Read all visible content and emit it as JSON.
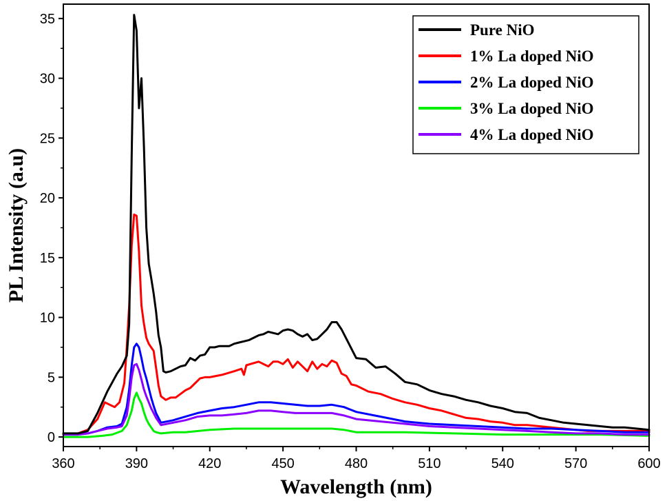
{
  "chart_data": {
    "type": "line",
    "title": "",
    "xlabel": "Wavelength (nm)",
    "ylabel": "PL Intensity (a.u)",
    "xlim": [
      360,
      600
    ],
    "ylim": [
      -0.8,
      36.2
    ],
    "xticks": [
      360,
      390,
      420,
      450,
      480,
      510,
      540,
      570,
      600
    ],
    "yticks": [
      0,
      5,
      10,
      15,
      20,
      25,
      30,
      35
    ],
    "grid": false,
    "legend_position": "top-right",
    "series": [
      {
        "name": "Pure NiO",
        "color": "#000000",
        "x": [
          360,
          366,
          370,
          374,
          378,
          382,
          384,
          386,
          387,
          388,
          389,
          390,
          391,
          392,
          393,
          394,
          395,
          396,
          397,
          398,
          399,
          400,
          401,
          402,
          404,
          406,
          408,
          410,
          412,
          414,
          416,
          418,
          420,
          422,
          424,
          426,
          428,
          430,
          432,
          434,
          436,
          438,
          440,
          442,
          444,
          446,
          448,
          450,
          452,
          454,
          456,
          458,
          460,
          462,
          464,
          466,
          468,
          470,
          472,
          474,
          476,
          478,
          480,
          484,
          488,
          492,
          496,
          500,
          505,
          510,
          515,
          520,
          525,
          530,
          535,
          540,
          545,
          550,
          555,
          560,
          565,
          570,
          575,
          580,
          585,
          590,
          595,
          600
        ],
        "y": [
          0.3,
          0.3,
          0.5,
          2.0,
          3.8,
          5.3,
          5.9,
          6.8,
          9.5,
          23.5,
          35.3,
          34.0,
          27.5,
          30.0,
          24.5,
          17.5,
          14.5,
          13.3,
          12.0,
          10.5,
          8.5,
          7.5,
          5.5,
          5.4,
          5.5,
          5.7,
          5.9,
          6.0,
          6.6,
          6.4,
          6.8,
          6.9,
          7.5,
          7.5,
          7.6,
          7.6,
          7.6,
          7.8,
          7.9,
          8.0,
          8.1,
          8.3,
          8.5,
          8.6,
          8.8,
          8.7,
          8.6,
          8.9,
          9.0,
          8.9,
          8.6,
          8.4,
          8.6,
          8.1,
          8.2,
          8.6,
          9.0,
          9.6,
          9.6,
          9.0,
          8.2,
          7.4,
          6.6,
          6.5,
          5.8,
          5.9,
          5.3,
          4.6,
          4.4,
          3.9,
          3.6,
          3.4,
          3.1,
          2.9,
          2.6,
          2.4,
          2.1,
          2.0,
          1.6,
          1.4,
          1.2,
          1.1,
          1.0,
          0.9,
          0.8,
          0.8,
          0.7,
          0.6
        ]
      },
      {
        "name": "1% La doped NiO",
        "color": "#ff0000",
        "x": [
          360,
          366,
          370,
          374,
          377,
          379,
          381,
          383,
          385,
          386,
          387,
          388,
          389,
          390,
          391,
          392,
          393,
          394,
          395,
          396,
          397,
          398,
          399,
          400,
          402,
          404,
          406,
          408,
          410,
          412,
          414,
          416,
          418,
          420,
          425,
          430,
          433,
          434,
          435,
          440,
          444,
          446,
          448,
          450,
          452,
          454,
          456,
          458,
          460,
          462,
          464,
          466,
          468,
          470,
          472,
          474,
          476,
          478,
          480,
          485,
          490,
          495,
          500,
          505,
          510,
          515,
          520,
          525,
          530,
          535,
          540,
          545,
          550,
          555,
          560,
          565,
          570,
          575,
          580,
          585,
          590,
          595,
          600
        ],
        "y": [
          0.2,
          0.3,
          0.6,
          1.5,
          2.9,
          2.7,
          2.5,
          2.9,
          4.5,
          7.5,
          11.0,
          16.0,
          18.6,
          18.5,
          15.5,
          11.0,
          9.5,
          8.3,
          7.8,
          7.5,
          7.2,
          5.8,
          4.3,
          3.4,
          3.1,
          3.3,
          3.3,
          3.6,
          3.9,
          4.1,
          4.5,
          4.9,
          5.0,
          5.0,
          5.2,
          5.5,
          5.7,
          5.2,
          6.0,
          6.3,
          5.9,
          6.3,
          6.3,
          6.1,
          6.5,
          5.8,
          6.3,
          5.9,
          5.5,
          6.3,
          5.7,
          6.1,
          5.9,
          6.4,
          6.2,
          5.3,
          5.1,
          4.4,
          4.3,
          3.8,
          3.6,
          3.2,
          2.9,
          2.7,
          2.4,
          2.2,
          1.9,
          1.6,
          1.5,
          1.3,
          1.2,
          1.0,
          1.0,
          0.9,
          0.8,
          0.7,
          0.6,
          0.5,
          0.5,
          0.5,
          0.5,
          0.5,
          0.5
        ]
      },
      {
        "name": "2% La doped NiO",
        "color": "#0000ff",
        "x": [
          360,
          366,
          370,
          374,
          378,
          382,
          384,
          386,
          387,
          388,
          389,
          390,
          391,
          392,
          393,
          394,
          395,
          396,
          397,
          398,
          400,
          405,
          410,
          415,
          420,
          425,
          430,
          435,
          440,
          445,
          450,
          455,
          460,
          465,
          470,
          475,
          480,
          490,
          500,
          510,
          520,
          530,
          540,
          550,
          560,
          570,
          580,
          590,
          600
        ],
        "y": [
          0.2,
          0.2,
          0.3,
          0.5,
          0.8,
          0.9,
          1.1,
          2.5,
          4.0,
          6.0,
          7.5,
          7.8,
          7.5,
          6.6,
          5.6,
          4.9,
          4.1,
          3.3,
          2.6,
          2.0,
          1.2,
          1.4,
          1.7,
          2.0,
          2.2,
          2.4,
          2.5,
          2.7,
          2.9,
          2.9,
          2.8,
          2.7,
          2.6,
          2.6,
          2.7,
          2.5,
          2.1,
          1.7,
          1.3,
          1.1,
          1.0,
          0.9,
          0.8,
          0.7,
          0.7,
          0.6,
          0.5,
          0.4,
          0.4
        ]
      },
      {
        "name": "3% La doped NiO",
        "color": "#00ee00",
        "x": [
          360,
          370,
          376,
          380,
          384,
          386,
          388,
          389,
          390,
          391,
          392,
          393,
          394,
          395,
          396,
          397,
          398,
          400,
          405,
          410,
          420,
          430,
          440,
          450,
          460,
          470,
          475,
          480,
          500,
          520,
          540,
          560,
          580,
          600
        ],
        "y": [
          0.0,
          0.0,
          0.1,
          0.2,
          0.5,
          1.0,
          2.2,
          3.2,
          3.7,
          3.2,
          2.8,
          2.1,
          1.5,
          1.1,
          0.8,
          0.5,
          0.4,
          0.3,
          0.4,
          0.4,
          0.6,
          0.7,
          0.7,
          0.7,
          0.7,
          0.7,
          0.6,
          0.4,
          0.4,
          0.3,
          0.2,
          0.2,
          0.2,
          0.1
        ]
      },
      {
        "name": "4% La doped NiO",
        "color": "#8b00ff",
        "x": [
          360,
          366,
          370,
          374,
          378,
          382,
          384,
          386,
          387,
          388,
          389,
          390,
          391,
          392,
          393,
          394,
          395,
          396,
          397,
          398,
          400,
          405,
          410,
          415,
          420,
          425,
          430,
          435,
          440,
          445,
          450,
          455,
          460,
          465,
          470,
          475,
          480,
          490,
          500,
          510,
          520,
          530,
          540,
          550,
          560,
          570,
          580,
          590,
          600
        ],
        "y": [
          0.2,
          0.2,
          0.3,
          0.5,
          0.7,
          0.8,
          0.9,
          1.8,
          3.2,
          5.0,
          6.0,
          6.1,
          5.6,
          4.8,
          4.0,
          3.4,
          2.9,
          2.4,
          2.0,
          1.6,
          1.0,
          1.2,
          1.4,
          1.7,
          1.8,
          1.8,
          1.9,
          2.0,
          2.2,
          2.2,
          2.1,
          2.0,
          2.0,
          2.0,
          2.0,
          1.8,
          1.5,
          1.3,
          1.1,
          0.9,
          0.8,
          0.7,
          0.6,
          0.5,
          0.4,
          0.3,
          0.3,
          0.2,
          0.2
        ]
      }
    ]
  }
}
